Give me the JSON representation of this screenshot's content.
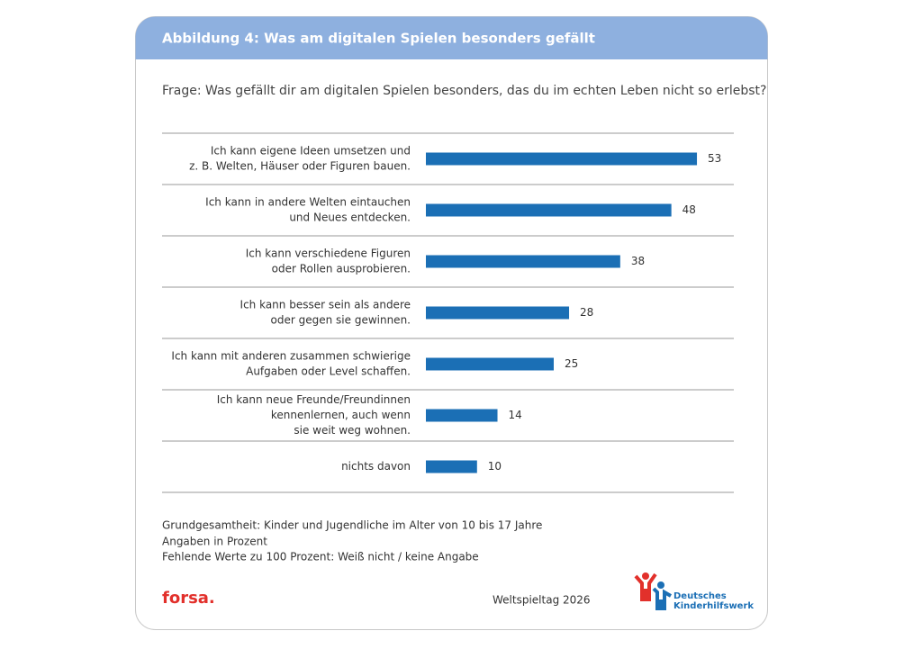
{
  "header": {
    "title": "Abbildung 4: Was am digitalen Spielen besonders gefällt"
  },
  "chart_data": {
    "type": "bar",
    "orientation": "horizontal",
    "subtitle": "Frage: Was gefällt dir am digitalen Spielen besonders, das du im echten Leben nicht so erlebst?",
    "categories": [
      [
        "Ich kann eigene Ideen umsetzen und",
        "z. B. Welten, Häuser oder Figuren bauen."
      ],
      [
        "Ich kann in andere Welten eintauchen",
        "und Neues entdecken."
      ],
      [
        "Ich kann verschiedene Figuren",
        "oder Rollen ausprobieren."
      ],
      [
        "Ich kann besser sein als andere",
        "oder gegen sie gewinnen."
      ],
      [
        "Ich kann mit anderen zusammen schwierige",
        "Aufgaben oder Level schaffen."
      ],
      [
        "Ich kann neue Freunde/Freundinnen",
        "kennenlernen, auch wenn",
        "sie weit weg wohnen."
      ],
      [
        "nichts davon"
      ]
    ],
    "values": [
      53,
      48,
      38,
      28,
      25,
      14,
      10
    ],
    "color": "#1b6fb5"
  },
  "notes": [
    "Grundgesamtheit: Kinder und Jugendliche im Alter von 10 bis 17 Jahre",
    "Angaben in Prozent",
    "Fehlende Werte zu 100 Prozent: Weiß nicht / keine Angabe"
  ],
  "footer": {
    "brand": "forsa.",
    "event": "Weltspieltag 2026",
    "logo_text": [
      "Deutsches",
      "Kinderhilfswerk"
    ]
  }
}
